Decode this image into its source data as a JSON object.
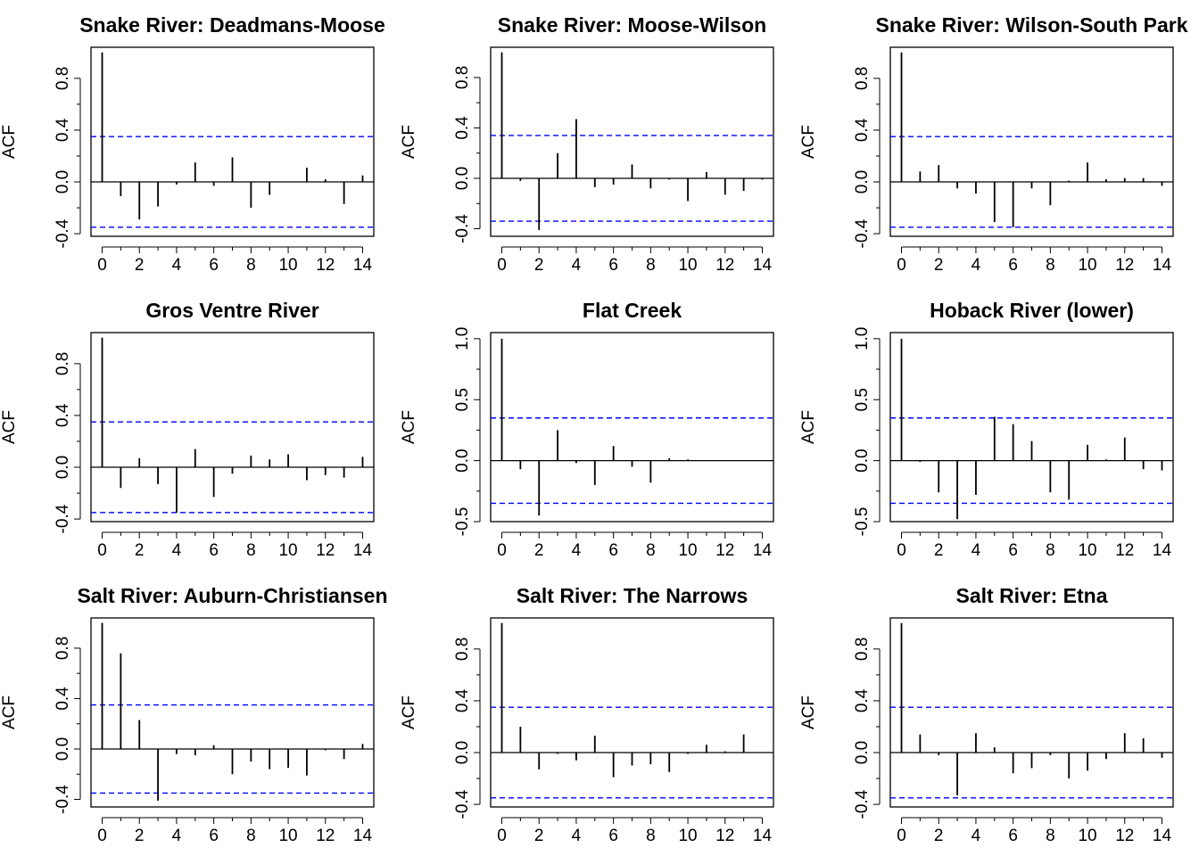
{
  "figure": {
    "ylabel": "ACF",
    "x_tick_labels": [
      "0",
      "2",
      "4",
      "6",
      "8",
      "10",
      "12",
      "14"
    ],
    "colors": {
      "bars": "#000000",
      "confidence_band": "#0000ff",
      "axes": "#000000",
      "background": "#ffffff"
    }
  },
  "chart_data": [
    {
      "type": "bar",
      "title": "Snake River: Deadmans-Moose",
      "ylabel": "ACF",
      "lags": [
        0,
        1,
        2,
        3,
        4,
        5,
        6,
        7,
        8,
        9,
        10,
        11,
        12,
        13,
        14
      ],
      "values": [
        1.0,
        -0.11,
        -0.29,
        -0.19,
        -0.02,
        0.15,
        -0.03,
        0.19,
        -0.2,
        -0.1,
        0.0,
        0.11,
        0.02,
        -0.17,
        0.05
      ],
      "confidence_limit": 0.35,
      "y_tick_labels": [
        "-0.4",
        "0.0",
        "0.4",
        "0.8"
      ],
      "y_tick_values": [
        -0.4,
        0.0,
        0.4,
        0.8
      ],
      "ylim": [
        -0.42,
        1.04
      ],
      "xlim": [
        -0.6,
        14.6
      ]
    },
    {
      "type": "bar",
      "title": "Snake River: Moose-Wilson",
      "ylabel": "ACF",
      "lags": [
        0,
        1,
        2,
        3,
        4,
        5,
        6,
        7,
        8,
        9,
        10,
        11,
        12,
        13,
        14
      ],
      "values": [
        1.0,
        -0.02,
        -0.41,
        0.2,
        0.47,
        -0.07,
        -0.05,
        0.11,
        -0.08,
        -0.01,
        -0.18,
        0.05,
        -0.13,
        -0.1,
        -0.01
      ],
      "confidence_limit": 0.34,
      "y_tick_labels": [
        "-0.4",
        "0.0",
        "0.4",
        "0.8"
      ],
      "y_tick_values": [
        -0.4,
        0.0,
        0.4,
        0.8
      ],
      "ylim": [
        -0.46,
        1.04
      ],
      "xlim": [
        -0.6,
        14.6
      ]
    },
    {
      "type": "bar",
      "title": "Snake River: Wilson-South Park",
      "ylabel": "ACF",
      "lags": [
        0,
        1,
        2,
        3,
        4,
        5,
        6,
        7,
        8,
        9,
        10,
        11,
        12,
        13,
        14
      ],
      "values": [
        1.0,
        0.08,
        0.13,
        -0.05,
        -0.09,
        -0.31,
        -0.35,
        -0.05,
        -0.18,
        0.01,
        0.15,
        0.02,
        0.03,
        0.03,
        -0.03
      ],
      "confidence_limit": 0.35,
      "y_tick_labels": [
        "-0.4",
        "0.0",
        "0.4",
        "0.8"
      ],
      "y_tick_values": [
        -0.4,
        0.0,
        0.4,
        0.8
      ],
      "ylim": [
        -0.42,
        1.04
      ],
      "xlim": [
        -0.6,
        14.6
      ]
    },
    {
      "type": "bar",
      "title": "Gros Ventre River",
      "ylabel": "ACF",
      "lags": [
        0,
        1,
        2,
        3,
        4,
        5,
        6,
        7,
        8,
        9,
        10,
        11,
        12,
        13,
        14
      ],
      "values": [
        1.0,
        -0.16,
        0.07,
        -0.13,
        -0.35,
        0.14,
        -0.23,
        -0.05,
        0.09,
        0.06,
        0.1,
        -0.1,
        -0.06,
        -0.08,
        0.08
      ],
      "confidence_limit": 0.35,
      "y_tick_labels": [
        "-0.4",
        "0.0",
        "0.4",
        "0.8"
      ],
      "y_tick_values": [
        -0.4,
        0.0,
        0.4,
        0.8
      ],
      "ylim": [
        -0.42,
        1.04
      ],
      "xlim": [
        -0.6,
        14.6
      ]
    },
    {
      "type": "bar",
      "title": "Flat Creek",
      "ylabel": "ACF",
      "lags": [
        0,
        1,
        2,
        3,
        4,
        5,
        6,
        7,
        8,
        9,
        10,
        11,
        12,
        13,
        14
      ],
      "values": [
        1.0,
        -0.07,
        -0.45,
        0.25,
        -0.02,
        -0.2,
        0.12,
        -0.05,
        -0.18,
        0.02,
        0.01,
        0.0,
        0.0,
        0.0,
        0.0
      ],
      "confidence_limit": 0.35,
      "y_tick_labels": [
        "-0.5",
        "0.0",
        "0.5",
        "1.0"
      ],
      "y_tick_values": [
        -0.5,
        0.0,
        0.5,
        1.0
      ],
      "ylim": [
        -0.5,
        1.05
      ],
      "xlim": [
        -0.6,
        14.6
      ]
    },
    {
      "type": "bar",
      "title": "Hoback River (lower)",
      "ylabel": "ACF",
      "lags": [
        0,
        1,
        2,
        3,
        4,
        5,
        6,
        7,
        8,
        9,
        10,
        11,
        12,
        13,
        14
      ],
      "values": [
        1.0,
        -0.01,
        -0.26,
        -0.48,
        -0.28,
        0.36,
        0.3,
        0.16,
        -0.26,
        -0.32,
        0.13,
        0.01,
        0.19,
        -0.07,
        -0.08
      ],
      "confidence_limit": 0.35,
      "y_tick_labels": [
        "-0.5",
        "0.0",
        "0.5",
        "1.0"
      ],
      "y_tick_values": [
        -0.5,
        0.0,
        0.5,
        1.0
      ],
      "ylim": [
        -0.5,
        1.05
      ],
      "xlim": [
        -0.6,
        14.6
      ]
    },
    {
      "type": "bar",
      "title": "Salt River: Auburn-Christiansen",
      "ylabel": "ACF",
      "lags": [
        0,
        1,
        2,
        3,
        4,
        5,
        6,
        7,
        8,
        9,
        10,
        11,
        12,
        13,
        14
      ],
      "values": [
        1.0,
        0.76,
        0.23,
        -0.41,
        -0.04,
        -0.05,
        0.03,
        -0.2,
        -0.1,
        -0.16,
        -0.15,
        -0.21,
        -0.01,
        -0.08,
        0.04
      ],
      "confidence_limit": 0.35,
      "y_tick_labels": [
        "-0.4",
        "0.0",
        "0.4",
        "0.8"
      ],
      "y_tick_values": [
        -0.4,
        0.0,
        0.4,
        0.8
      ],
      "ylim": [
        -0.46,
        1.04
      ],
      "xlim": [
        -0.6,
        14.6
      ]
    },
    {
      "type": "bar",
      "title": "Salt River: The Narrows",
      "ylabel": "ACF",
      "lags": [
        0,
        1,
        2,
        3,
        4,
        5,
        6,
        7,
        8,
        9,
        10,
        11,
        12,
        13,
        14
      ],
      "values": [
        1.0,
        0.2,
        -0.13,
        -0.01,
        -0.06,
        0.13,
        -0.19,
        -0.1,
        -0.09,
        -0.15,
        -0.01,
        0.06,
        0.01,
        0.14,
        0.0
      ],
      "confidence_limit": 0.35,
      "y_tick_labels": [
        "-0.4",
        "0.0",
        "0.4",
        "0.8"
      ],
      "y_tick_values": [
        -0.4,
        0.0,
        0.4,
        0.8
      ],
      "ylim": [
        -0.42,
        1.04
      ],
      "xlim": [
        -0.6,
        14.6
      ]
    },
    {
      "type": "bar",
      "title": "Salt River: Etna",
      "ylabel": "ACF",
      "lags": [
        0,
        1,
        2,
        3,
        4,
        5,
        6,
        7,
        8,
        9,
        10,
        11,
        12,
        13,
        14
      ],
      "values": [
        1.0,
        0.14,
        -0.02,
        -0.33,
        0.15,
        0.04,
        -0.16,
        -0.12,
        -0.02,
        -0.2,
        -0.14,
        -0.05,
        0.15,
        0.11,
        -0.04
      ],
      "confidence_limit": 0.35,
      "y_tick_labels": [
        "-0.4",
        "0.0",
        "0.4",
        "0.8"
      ],
      "y_tick_values": [
        -0.4,
        0.0,
        0.4,
        0.8
      ],
      "ylim": [
        -0.42,
        1.04
      ],
      "xlim": [
        -0.6,
        14.6
      ]
    }
  ]
}
